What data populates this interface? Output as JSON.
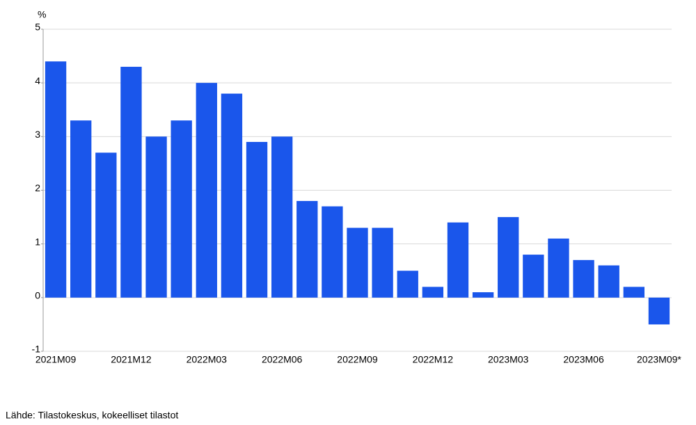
{
  "chart_data": {
    "type": "bar",
    "unit_label": "%",
    "categories": [
      "2021M09",
      null,
      null,
      "2021M12",
      null,
      null,
      "2022M03",
      null,
      null,
      "2022M06",
      null,
      null,
      "2022M09",
      null,
      null,
      "2022M12",
      null,
      null,
      "2023M03",
      null,
      null,
      "2023M06",
      null,
      null,
      "2023M09*"
    ],
    "values": [
      4.4,
      3.3,
      2.7,
      4.3,
      3.0,
      3.3,
      4.0,
      3.8,
      2.9,
      3.0,
      1.8,
      1.7,
      1.3,
      1.3,
      0.5,
      0.2,
      1.4,
      0.1,
      1.5,
      0.8,
      1.1,
      0.7,
      0.6,
      0.2,
      -0.5
    ],
    "color": "#1a56eb",
    "ylim": [
      -1,
      5
    ],
    "yticks": [
      -1,
      0,
      1,
      2,
      3,
      4,
      5
    ],
    "grid": true,
    "source": "Lähde: Tilastokeskus, kokeelliset tilastot"
  }
}
